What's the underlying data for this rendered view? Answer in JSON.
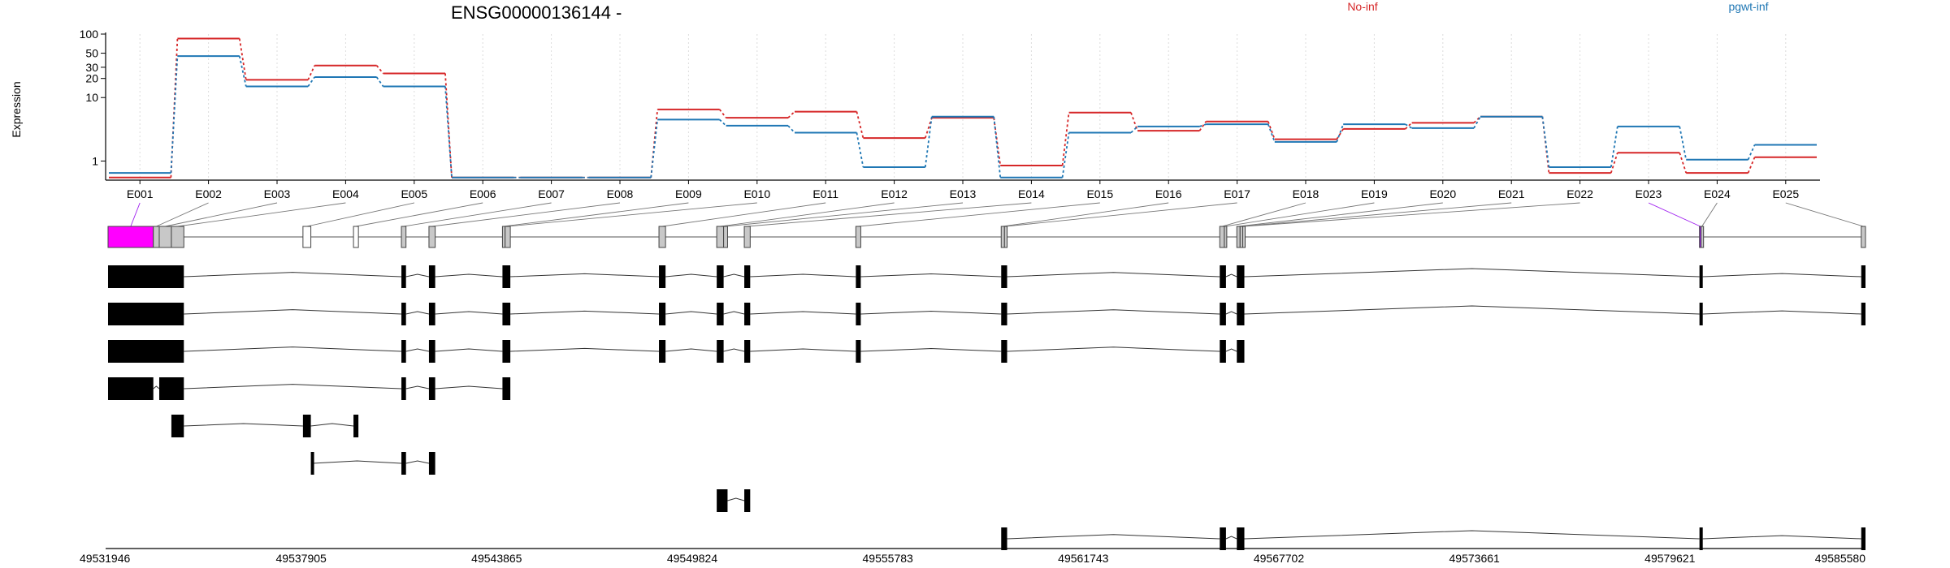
{
  "chart_data": {
    "type": "line",
    "title": "ENSG00000136144 -",
    "ylabel": "Expression",
    "yscale": "log",
    "ylim": [
      0.5,
      100
    ],
    "yticks": [
      1,
      10,
      20,
      30,
      50,
      100
    ],
    "grid": "vertical-dotted",
    "categories": [
      "E001",
      "E002",
      "E003",
      "E004",
      "E005",
      "E006",
      "E007",
      "E008",
      "E009",
      "E010",
      "E011",
      "E012",
      "E013",
      "E014",
      "E015",
      "E016",
      "E017",
      "E018",
      "E019",
      "E020",
      "E021",
      "E022",
      "E023",
      "E024",
      "E025"
    ],
    "series": [
      {
        "name": "No-inf",
        "color": "#d62728",
        "values": [
          0.55,
          85,
          19,
          32,
          24,
          0.55,
          0.55,
          0.55,
          6.5,
          4.8,
          6.0,
          2.3,
          4.8,
          0.85,
          5.8,
          3.0,
          4.2,
          2.2,
          3.2,
          4.0,
          5.0,
          0.65,
          1.35,
          0.65,
          1.15
        ]
      },
      {
        "name": "pgwt-inf",
        "color": "#1f77b4",
        "values": [
          0.65,
          45,
          15,
          21,
          15,
          0.55,
          0.55,
          0.55,
          4.5,
          3.6,
          2.8,
          0.8,
          5.0,
          0.55,
          2.8,
          3.5,
          3.8,
          2.0,
          3.8,
          3.3,
          5.0,
          0.8,
          3.5,
          1.05,
          1.8
        ]
      }
    ],
    "genomic_axis": {
      "ticks": [
        "49531946",
        "49537905",
        "49543865",
        "49549824",
        "49555783",
        "49561743",
        "49567702",
        "49573661",
        "49579621",
        "49585580"
      ],
      "start": 49531946,
      "end": 49585580
    },
    "exons": [
      {
        "id": "E001",
        "start": 49532020,
        "end": 49533400,
        "fill": "#ff00ff"
      },
      {
        "id": "E002",
        "start": 49533400,
        "end": 49533580,
        "fill": "#c8c8c8"
      },
      {
        "id": "E003",
        "start": 49533580,
        "end": 49533950,
        "fill": "#c8c8c8"
      },
      {
        "id": "E004",
        "start": 49533950,
        "end": 49534330,
        "fill": "#c8c8c8"
      },
      {
        "id": "E005",
        "start": 49537960,
        "end": 49538200,
        "fill": "#ffffff"
      },
      {
        "id": "E006",
        "start": 49539500,
        "end": 49539650,
        "fill": "#ffffff"
      },
      {
        "id": "E007",
        "start": 49540960,
        "end": 49541100,
        "fill": "#c8c8c8"
      },
      {
        "id": "E008",
        "start": 49541800,
        "end": 49541990,
        "fill": "#c8c8c8"
      },
      {
        "id": "E009",
        "start": 49544040,
        "end": 49544120,
        "fill": "#c8c8c8"
      },
      {
        "id": "E010",
        "start": 49544120,
        "end": 49544280,
        "fill": "#c8c8c8"
      },
      {
        "id": "E011",
        "start": 49548810,
        "end": 49549010,
        "fill": "#c8c8c8"
      },
      {
        "id": "E012",
        "start": 49550570,
        "end": 49550780,
        "fill": "#c8c8c8"
      },
      {
        "id": "E013",
        "start": 49550780,
        "end": 49550900,
        "fill": "#c8c8c8"
      },
      {
        "id": "E014",
        "start": 49551410,
        "end": 49551590,
        "fill": "#c8c8c8"
      },
      {
        "id": "E015",
        "start": 49554810,
        "end": 49554960,
        "fill": "#c8c8c8"
      },
      {
        "id": "E016",
        "start": 49559240,
        "end": 49559340,
        "fill": "#c8c8c8"
      },
      {
        "id": "E017",
        "start": 49559340,
        "end": 49559420,
        "fill": "#c8c8c8"
      },
      {
        "id": "E018",
        "start": 49565900,
        "end": 49566040,
        "fill": "#c8c8c8"
      },
      {
        "id": "E019",
        "start": 49566040,
        "end": 49566090,
        "fill": "#c8c8c8"
      },
      {
        "id": "E020",
        "start": 49566420,
        "end": 49566520,
        "fill": "#c8c8c8"
      },
      {
        "id": "E021",
        "start": 49566520,
        "end": 49566600,
        "fill": "#c8c8c8"
      },
      {
        "id": "E022",
        "start": 49566600,
        "end": 49566650,
        "fill": "#c8c8c8"
      },
      {
        "id": "E023",
        "start": 49580520,
        "end": 49580570,
        "fill": "#a020f0"
      },
      {
        "id": "E024",
        "start": 49580570,
        "end": 49580620,
        "fill": "#c8c8c8"
      },
      {
        "id": "E025",
        "start": 49585450,
        "end": 49585580,
        "fill": "#c8c8c8"
      }
    ],
    "transcripts": [
      {
        "exons": [
          [
            49532020,
            49534330
          ],
          [
            49540960,
            49541100
          ],
          [
            49541800,
            49541990
          ],
          [
            49544040,
            49544280
          ],
          [
            49548810,
            49549010
          ],
          [
            49550570,
            49550780
          ],
          [
            49551410,
            49551590
          ],
          [
            49554810,
            49554960
          ],
          [
            49559240,
            49559420
          ],
          [
            49565900,
            49566090
          ],
          [
            49566420,
            49566650
          ],
          [
            49580520,
            49580620
          ],
          [
            49585450,
            49585580
          ]
        ]
      },
      {
        "exons": [
          [
            49532020,
            49534330
          ],
          [
            49540960,
            49541100
          ],
          [
            49541800,
            49541990
          ],
          [
            49544040,
            49544280
          ],
          [
            49548810,
            49549010
          ],
          [
            49550570,
            49550780
          ],
          [
            49551410,
            49551590
          ],
          [
            49554810,
            49554960
          ],
          [
            49559240,
            49559420
          ],
          [
            49565900,
            49566090
          ],
          [
            49566420,
            49566650
          ],
          [
            49580520,
            49580620
          ],
          [
            49585450,
            49585580
          ]
        ]
      },
      {
        "exons": [
          [
            49532020,
            49534330
          ],
          [
            49540960,
            49541100
          ],
          [
            49541800,
            49541990
          ],
          [
            49544040,
            49544280
          ],
          [
            49548810,
            49549010
          ],
          [
            49550570,
            49550780
          ],
          [
            49551410,
            49551590
          ],
          [
            49554810,
            49554960
          ],
          [
            49559240,
            49559420
          ],
          [
            49565900,
            49566090
          ],
          [
            49566420,
            49566650
          ]
        ]
      },
      {
        "exons": [
          [
            49532020,
            49533400
          ],
          [
            49533580,
            49534330
          ],
          [
            49540960,
            49541100
          ],
          [
            49541800,
            49541990
          ],
          [
            49544040,
            49544280
          ]
        ]
      },
      {
        "exons": [
          [
            49533950,
            49534330
          ],
          [
            49537960,
            49538200
          ],
          [
            49539500,
            49539650
          ]
        ]
      },
      {
        "exons": [
          [
            49538200,
            49538260
          ],
          [
            49540960,
            49541100
          ],
          [
            49541800,
            49541990
          ]
        ]
      },
      {
        "exons": [
          [
            49550570,
            49550900
          ],
          [
            49551410,
            49551590
          ]
        ]
      },
      {
        "exons": [
          [
            49559240,
            49559420
          ],
          [
            49565900,
            49566090
          ],
          [
            49566420,
            49566650
          ],
          [
            49580520,
            49580620
          ],
          [
            49585450,
            49585580
          ]
        ]
      }
    ]
  }
}
